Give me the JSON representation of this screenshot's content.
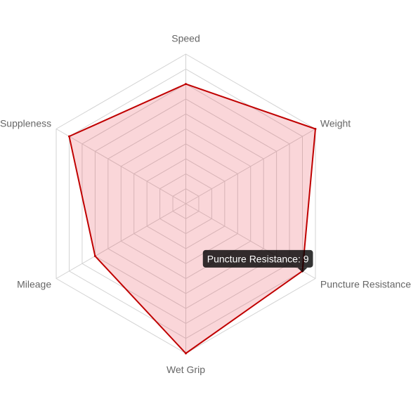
{
  "chart_data": {
    "type": "radar",
    "categories": [
      "Speed",
      "Weight",
      "Puncture Resistance",
      "Wet Grip",
      "Mileage",
      "Suppleness"
    ],
    "series": [
      {
        "values": [
          8,
          10,
          9,
          10,
          7,
          9
        ]
      }
    ],
    "rlim": [
      0,
      10
    ],
    "grid": true,
    "colors": {
      "line": "#c00000",
      "fill": "rgba(230, 70, 80, 0.22)",
      "grid": "#d3d3d3",
      "label": "#666666",
      "tooltip_bg": "#000000"
    }
  },
  "tooltip": {
    "text": "Puncture Resistance: 9",
    "category": "Puncture Resistance"
  }
}
